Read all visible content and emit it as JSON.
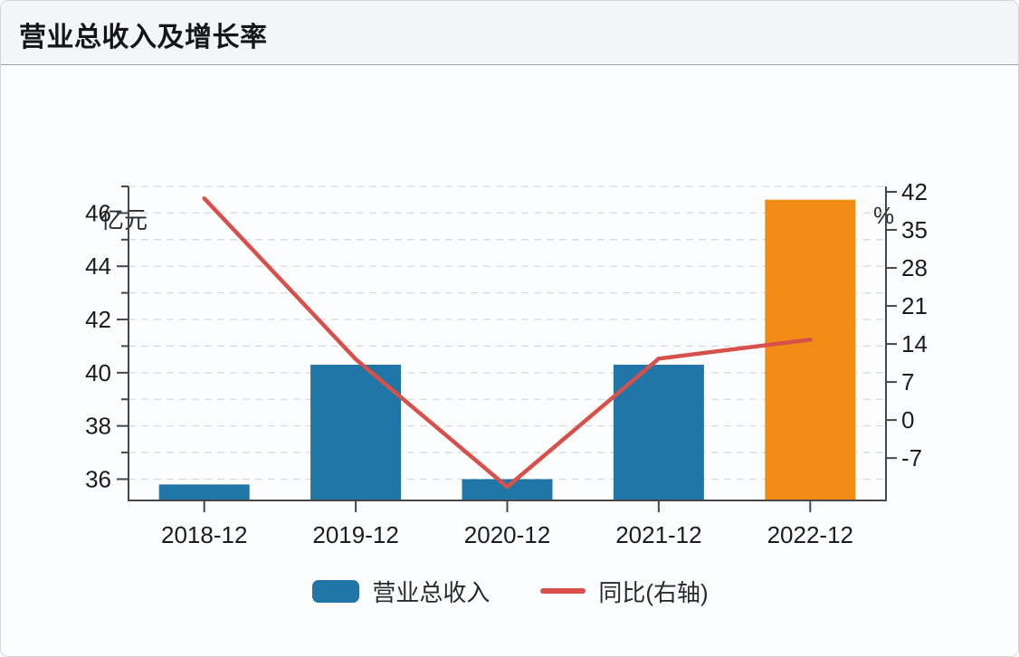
{
  "header": {
    "title": "营业总收入及增长率"
  },
  "chart_data": {
    "type": "bar+line",
    "title": "营业总收入及增长率",
    "categories": [
      "2018-12",
      "2019-12",
      "2020-12",
      "2021-12",
      "2022-12"
    ],
    "series": [
      {
        "name": "营业总收入",
        "type": "bar",
        "axis": "left",
        "unit": "亿元",
        "values": [
          35.8,
          40.3,
          36.0,
          40.3,
          46.5
        ],
        "color": "#2176a8",
        "bar_colors": [
          "#2176a8",
          "#2176a8",
          "#2176a8",
          "#2176a8",
          "#f28c16"
        ]
      },
      {
        "name": "同比(右轴)",
        "type": "line",
        "axis": "right",
        "unit": "%",
        "values": [
          40.8,
          11.2,
          -12.3,
          11.3,
          14.8
        ],
        "color": "#d8504a"
      }
    ],
    "left_axis": {
      "label": "亿元",
      "major_ticks": [
        36,
        38,
        40,
        42,
        44,
        46
      ],
      "minor_ticks": [
        37,
        39,
        41,
        43,
        45,
        47
      ],
      "range": [
        35.2,
        47.0
      ],
      "gridlines": "dashed horizontal at every integer 36-47"
    },
    "right_axis": {
      "label": "%",
      "major_ticks": [
        -7,
        0,
        7,
        14,
        21,
        28,
        35,
        42
      ],
      "range": [
        -14.8,
        43.0
      ]
    },
    "legend": [
      {
        "label": "营业总收入",
        "swatch": "bar"
      },
      {
        "label": "同比(右轴)",
        "swatch": "line"
      }
    ],
    "style_colors": {
      "axis": "#45454d",
      "gridline": "#d8dadb",
      "tick_label": "#1c1c1f"
    }
  }
}
